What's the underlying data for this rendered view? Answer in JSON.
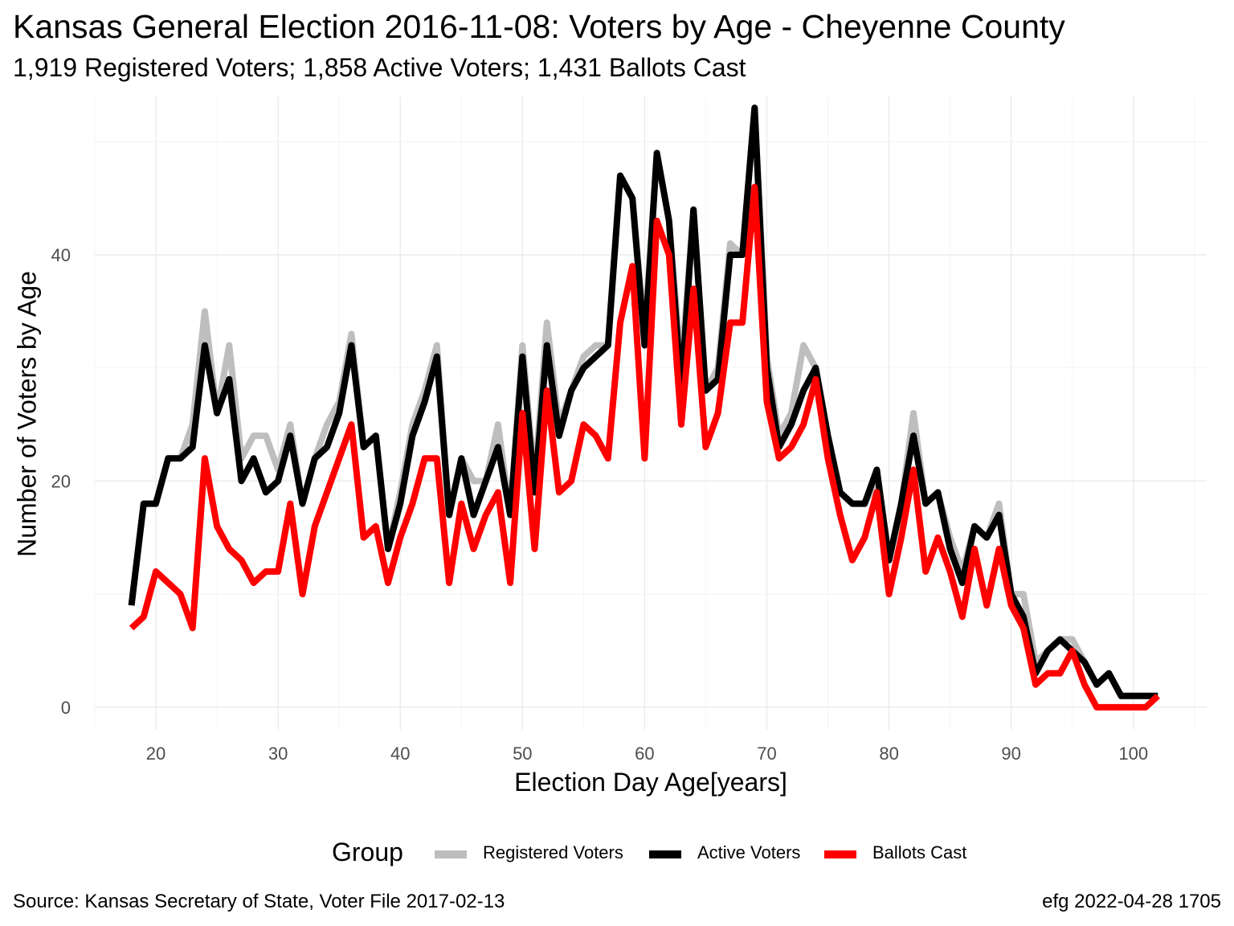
{
  "title": "Kansas General Election 2016-11-08:  Voters by Age - Cheyenne County",
  "subtitle": "1,919 Registered Voters; 1,858 Active Voters; 1,431 Ballots Cast",
  "caption_left": "Source:  Kansas Secretary of State, Voter File  2017-02-13",
  "caption_right": "efg 2022-04-28 1705",
  "legend": {
    "title": "Group",
    "items": [
      {
        "label": "Registered Voters",
        "color": "#bebebe"
      },
      {
        "label": "Active Voters",
        "color": "#000000"
      },
      {
        "label": "Ballots Cast",
        "color": "#ff0000"
      }
    ]
  },
  "chart_data": {
    "type": "line",
    "xlabel": "Election Day Age[years]",
    "ylabel": "Number of Voters by Age",
    "xlim": [
      15,
      106
    ],
    "ylim": [
      -2,
      54
    ],
    "x_ticks": [
      20,
      30,
      40,
      50,
      60,
      70,
      80,
      90,
      100
    ],
    "y_ticks": [
      0,
      20,
      40
    ],
    "grid": true,
    "legend_position": "bottom",
    "x": [
      18,
      19,
      20,
      21,
      22,
      23,
      24,
      25,
      26,
      27,
      28,
      29,
      30,
      31,
      32,
      33,
      34,
      35,
      36,
      37,
      38,
      39,
      40,
      41,
      42,
      43,
      44,
      45,
      46,
      47,
      48,
      49,
      50,
      51,
      52,
      53,
      54,
      55,
      56,
      57,
      58,
      59,
      60,
      61,
      62,
      63,
      64,
      65,
      66,
      67,
      68,
      69,
      70,
      71,
      72,
      73,
      74,
      75,
      76,
      77,
      78,
      79,
      80,
      81,
      82,
      83,
      84,
      85,
      86,
      87,
      88,
      89,
      90,
      91,
      92,
      93,
      94,
      95,
      96,
      97,
      98,
      99,
      100,
      101,
      102
    ],
    "series": [
      {
        "name": "Registered Voters",
        "color": "#bebebe",
        "values": [
          9,
          18,
          18,
          22,
          22,
          25,
          35,
          26,
          32,
          22,
          24,
          24,
          21,
          25,
          18,
          22,
          25,
          27,
          33,
          23,
          24,
          14,
          19,
          25,
          28,
          32,
          17,
          22,
          20,
          20,
          25,
          17,
          32,
          20,
          34,
          25,
          28,
          31,
          32,
          32,
          47,
          45,
          33,
          49,
          43,
          30,
          44,
          28,
          30,
          41,
          40,
          53,
          31,
          24,
          26,
          32,
          30,
          24,
          19,
          18,
          18,
          20,
          13,
          18,
          26,
          18,
          19,
          15,
          12,
          16,
          15,
          18,
          10,
          10,
          4,
          5,
          6,
          6,
          4,
          2,
          3,
          1,
          1,
          1,
          1
        ]
      },
      {
        "name": "Active Voters",
        "color": "#000000",
        "values": [
          9,
          18,
          18,
          22,
          22,
          23,
          32,
          26,
          29,
          20,
          22,
          19,
          20,
          24,
          18,
          22,
          23,
          26,
          32,
          23,
          24,
          14,
          18,
          24,
          27,
          31,
          17,
          22,
          17,
          20,
          23,
          17,
          31,
          19,
          32,
          24,
          28,
          30,
          31,
          32,
          47,
          45,
          32,
          49,
          43,
          28,
          44,
          28,
          29,
          40,
          40,
          53,
          30,
          23,
          25,
          28,
          30,
          24,
          19,
          18,
          18,
          21,
          13,
          18,
          24,
          18,
          19,
          14,
          11,
          16,
          15,
          17,
          10,
          8,
          3,
          5,
          6,
          5,
          4,
          2,
          3,
          1,
          1,
          1,
          1
        ]
      },
      {
        "name": "Ballots Cast",
        "color": "#ff0000",
        "values": [
          7,
          8,
          12,
          11,
          10,
          7,
          22,
          16,
          14,
          13,
          11,
          12,
          12,
          18,
          10,
          16,
          19,
          22,
          25,
          15,
          16,
          11,
          15,
          18,
          22,
          22,
          11,
          18,
          14,
          17,
          19,
          11,
          26,
          14,
          28,
          19,
          20,
          25,
          24,
          22,
          34,
          39,
          22,
          43,
          40,
          25,
          37,
          23,
          26,
          34,
          34,
          46,
          27,
          22,
          23,
          25,
          29,
          22,
          17,
          13,
          15,
          19,
          10,
          15,
          21,
          12,
          15,
          12,
          8,
          14,
          9,
          14,
          9,
          7,
          2,
          3,
          3,
          5,
          2,
          0,
          0,
          0,
          0,
          0,
          1
        ]
      }
    ]
  }
}
